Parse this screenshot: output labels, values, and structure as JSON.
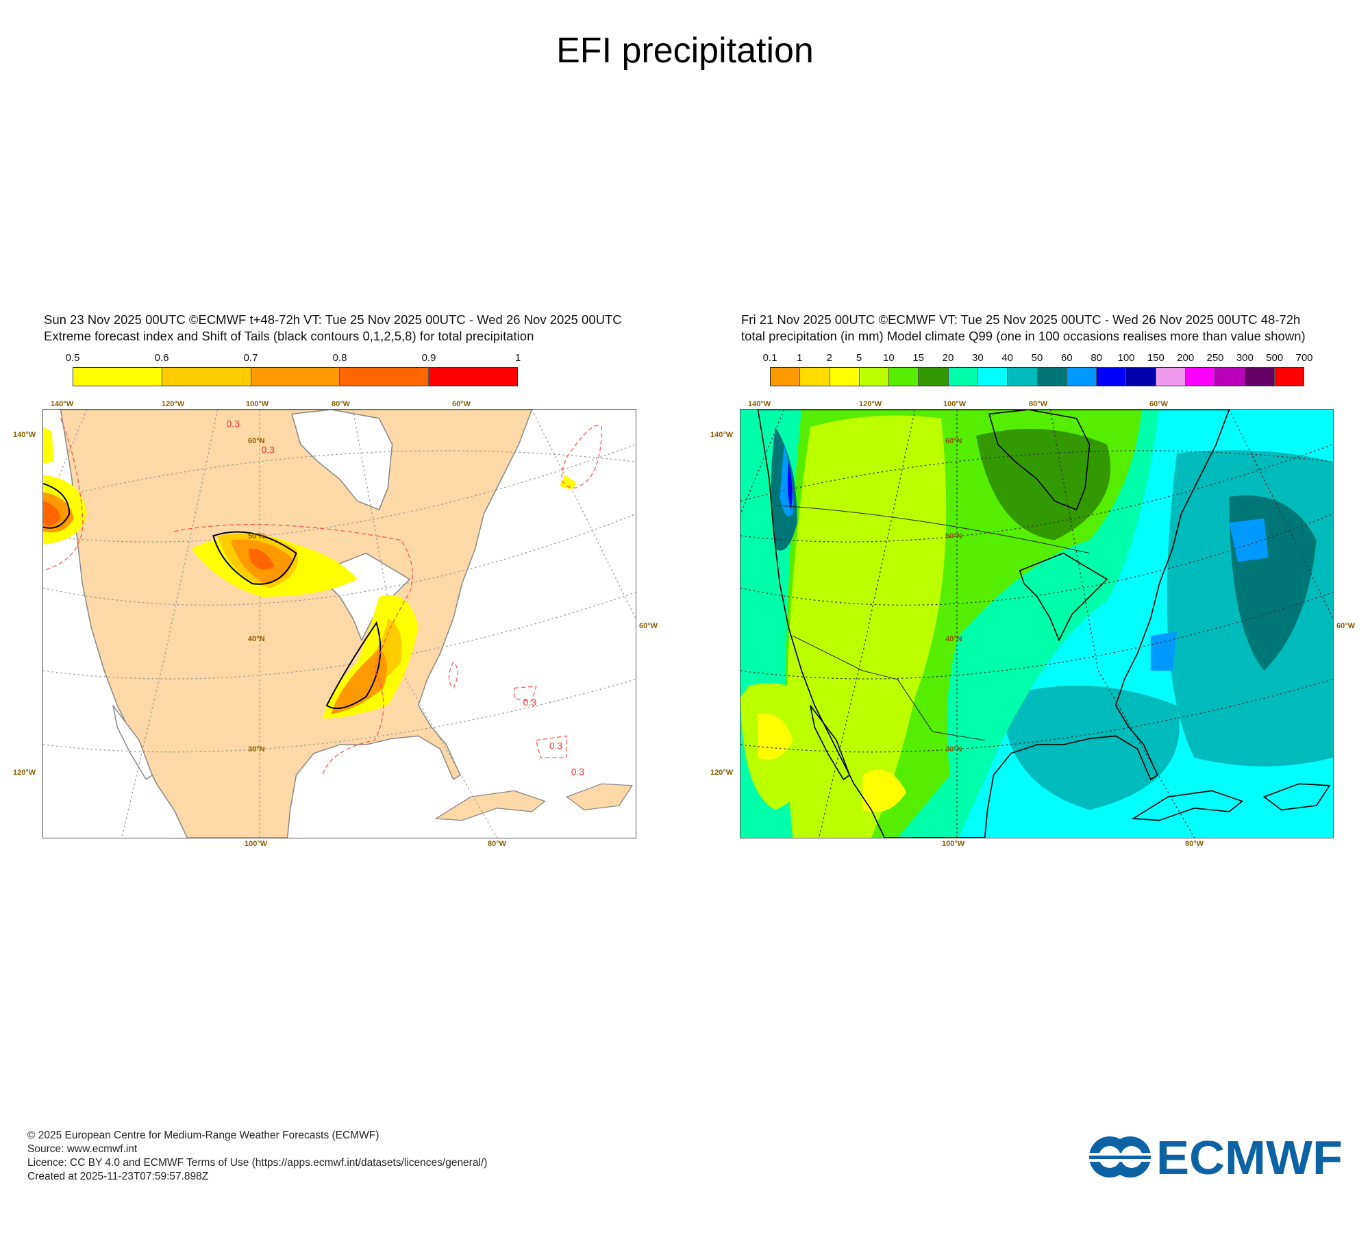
{
  "title": "EFI precipitation",
  "left_panel": {
    "header_line1": "Sun 23 Nov 2025 00UTC ©ECMWF t+48-72h  VT: Tue 25 Nov 2025 00UTC - Wed 26 Nov 2025 00UTC",
    "header_line2": "Extreme forecast index and Shift of Tails (black contours 0,1,2,5,8) for total precipitation",
    "colorbar": {
      "labels": [
        "0.5",
        "0.6",
        "0.7",
        "0.8",
        "0.9",
        "1"
      ],
      "colors": [
        "#ffff00",
        "#ffcc00",
        "#ff9900",
        "#ff6600",
        "#ff0000"
      ]
    },
    "land_color": "#fcd9a6",
    "contour_label": "0.3",
    "geo_labels": {
      "top": [
        "140°W",
        "120°W",
        "100°W",
        "80°W",
        "60°W"
      ],
      "left": [
        "140°W",
        "120°W"
      ],
      "right": [
        "60°W"
      ],
      "bottom": [
        "100°W",
        "80°W"
      ],
      "lat": [
        "60°N",
        "50°N",
        "40°N",
        "30°N"
      ]
    }
  },
  "right_panel": {
    "header_line1": "Fri 21 Nov 2025 00UTC ©ECMWF VT: Tue 25 Nov 2025 00UTC - Wed 26 Nov 2025 00UTC   48-72h",
    "header_line2": "total precipitation (in mm)  Model climate Q99 (one in 100 occasions realises more than value shown)",
    "colorbar": {
      "labels": [
        "0.1",
        "1",
        "2",
        "5",
        "10",
        "15",
        "20",
        "30",
        "40",
        "50",
        "60",
        "80",
        "100",
        "150",
        "200",
        "250",
        "300",
        "500",
        "700"
      ],
      "colors": [
        "#ff9900",
        "#ffdd00",
        "#ffff00",
        "#bbff00",
        "#55ee00",
        "#339900",
        "#00ffaa",
        "#00ffff",
        "#00bbbb",
        "#007777",
        "#0099ff",
        "#0000ff",
        "#0000aa",
        "#ee99ee",
        "#ff00ff",
        "#bb00bb",
        "#660066",
        "#ff0000"
      ]
    },
    "geo_labels": {
      "top": [
        "140°W",
        "120°W",
        "100°W",
        "80°W",
        "60°W"
      ],
      "left": [
        "140°W",
        "120°W"
      ],
      "right": [
        "60°W"
      ],
      "bottom": [
        "100°W",
        "80°W"
      ],
      "lat": [
        "60°N",
        "50°N",
        "40°N",
        "30°N"
      ]
    }
  },
  "footer": {
    "line1": "© 2025 European Centre for Medium-Range Weather Forecasts (ECMWF)",
    "line2": "Source: www.ecmwf.int",
    "line3": "Licence: CC BY 4.0 and ECMWF Terms of Use (https://apps.ecmwf.int/datasets/licences/general/)",
    "line4": "Created at 2025-11-23T07:59:57.898Z"
  },
  "logo": {
    "text": "ECMWF",
    "color": "#0b62a4"
  }
}
